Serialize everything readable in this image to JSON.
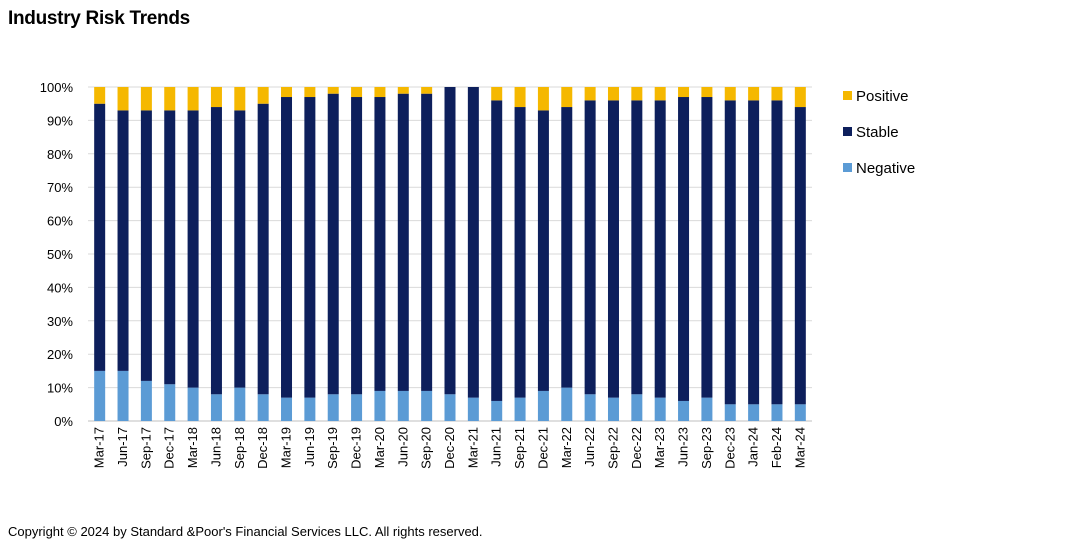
{
  "title": "Industry Risk Trends",
  "footer": "Copyright © 2024 by Standard &Poor's Financial Services LLC. All rights reserved.",
  "colors": {
    "positive": "#f5b800",
    "stable": "#0d1f5c",
    "negative": "#5b9bd5",
    "grid": "#d9d9d9"
  },
  "chart_data": {
    "type": "bar",
    "stacked": true,
    "percent": true,
    "categories": [
      "Mar-17",
      "Jun-17",
      "Sep-17",
      "Dec-17",
      "Mar-18",
      "Jun-18",
      "Sep-18",
      "Dec-18",
      "Mar-19",
      "Jun-19",
      "Sep-19",
      "Dec-19",
      "Mar-20",
      "Jun-20",
      "Sep-20",
      "Dec-20",
      "Mar-21",
      "Jun-21",
      "Sep-21",
      "Dec-21",
      "Mar-22",
      "Jun-22",
      "Sep-22",
      "Dec-22",
      "Mar-23",
      "Jun-23",
      "Sep-23",
      "Dec-23",
      "Jan-24",
      "Feb-24",
      "Mar-24"
    ],
    "series": [
      {
        "name": "Negative",
        "values": [
          15,
          15,
          12,
          11,
          10,
          8,
          10,
          8,
          7,
          7,
          8,
          8,
          9,
          9,
          9,
          8,
          7,
          6,
          7,
          9,
          10,
          8,
          7,
          8,
          7,
          6,
          7,
          5,
          5,
          5,
          5
        ]
      },
      {
        "name": "Stable",
        "values": [
          80,
          78,
          81,
          82,
          83,
          86,
          83,
          87,
          90,
          90,
          90,
          89,
          88,
          89,
          89,
          92,
          93,
          90,
          87,
          84,
          84,
          88,
          89,
          88,
          89,
          91,
          90,
          91,
          91,
          91,
          89
        ]
      },
      {
        "name": "Positive",
        "values": [
          5,
          7,
          7,
          7,
          7,
          6,
          7,
          5,
          3,
          3,
          2,
          3,
          3,
          2,
          2,
          0,
          0,
          4,
          6,
          7,
          6,
          4,
          4,
          4,
          4,
          3,
          3,
          4,
          4,
          4,
          6
        ]
      }
    ],
    "legend": {
      "position": "right",
      "order": [
        "Positive",
        "Stable",
        "Negative"
      ]
    },
    "yticks": [
      "0%",
      "10%",
      "20%",
      "30%",
      "40%",
      "50%",
      "60%",
      "70%",
      "80%",
      "90%",
      "100%"
    ],
    "ylim": [
      0,
      100
    ],
    "grid": true
  }
}
